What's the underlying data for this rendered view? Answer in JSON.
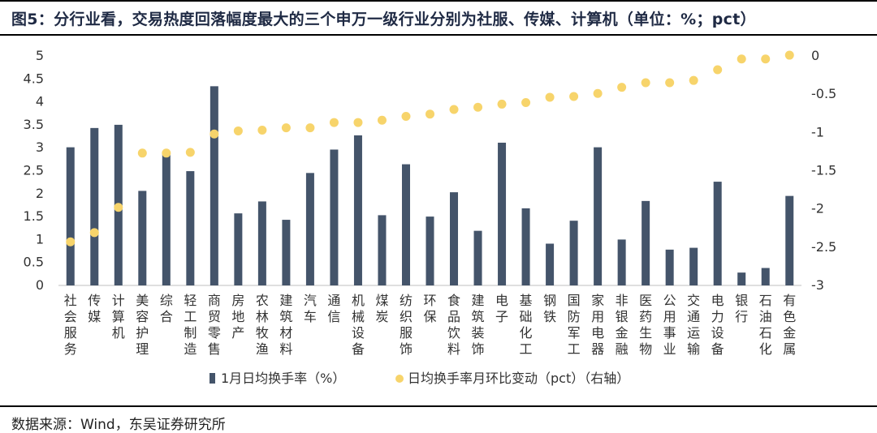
{
  "title": "图5：分行业看，交易热度回落幅度最大的三个申万一级行业分别为社服、传媒、计算机（单位：%；pct）",
  "source": "数据来源：Wind，东吴证券研究所",
  "colors": {
    "bar": "#44546a",
    "dot": "#f7d46b",
    "axis": "#bfbfbf"
  },
  "chart_data": {
    "type": "bar",
    "categories": [
      "社会服务",
      "传媒",
      "计算机",
      "美容护理",
      "综合",
      "轻工制造",
      "商贸零售",
      "房地产",
      "农林牧渔",
      "建筑材料",
      "汽车",
      "通信",
      "机械设备",
      "煤炭",
      "纺织服饰",
      "环保",
      "食品饮料",
      "建筑装饰",
      "电子",
      "基础化工",
      "钢铁",
      "国防军工",
      "家用电器",
      "非银金融",
      "医药生物",
      "公用事业",
      "交通运输",
      "电力设备",
      "银行",
      "石油石化",
      "有色金属"
    ],
    "series": [
      {
        "name": "1月日均换手率（%）",
        "type": "bar",
        "axis": "left",
        "values": [
          3.01,
          3.43,
          3.5,
          2.06,
          2.91,
          2.49,
          4.34,
          1.57,
          1.83,
          1.43,
          2.45,
          2.96,
          3.27,
          1.53,
          2.64,
          1.5,
          2.03,
          1.19,
          3.11,
          1.68,
          0.91,
          1.41,
          3.01,
          1.0,
          1.84,
          0.78,
          0.82,
          2.26,
          0.28,
          0.38,
          1.95
        ]
      },
      {
        "name": "日均换手率月环比变动（pct）（右轴）",
        "type": "scatter",
        "axis": "right",
        "values": [
          -2.43,
          -2.31,
          -1.98,
          -1.27,
          -1.27,
          -1.26,
          -1.02,
          -0.98,
          -0.97,
          -0.94,
          -0.94,
          -0.87,
          -0.87,
          -0.84,
          -0.79,
          -0.76,
          -0.7,
          -0.67,
          -0.63,
          -0.61,
          -0.54,
          -0.53,
          -0.49,
          -0.41,
          -0.35,
          -0.35,
          -0.32,
          -0.18,
          -0.04,
          -0.04,
          0.01
        ]
      }
    ],
    "y_left": {
      "ylim": [
        0,
        5
      ],
      "ticks": [
        "0",
        "0.5",
        "1",
        "1.5",
        "2",
        "2.5",
        "3",
        "3.5",
        "4",
        "4.5",
        "5"
      ]
    },
    "y_right": {
      "ylim": [
        -3,
        0
      ],
      "ticks": [
        "-3",
        "-2.5",
        "-2",
        "-1.5",
        "-1",
        "-0.5",
        "0"
      ]
    },
    "legend_position": "bottom"
  }
}
